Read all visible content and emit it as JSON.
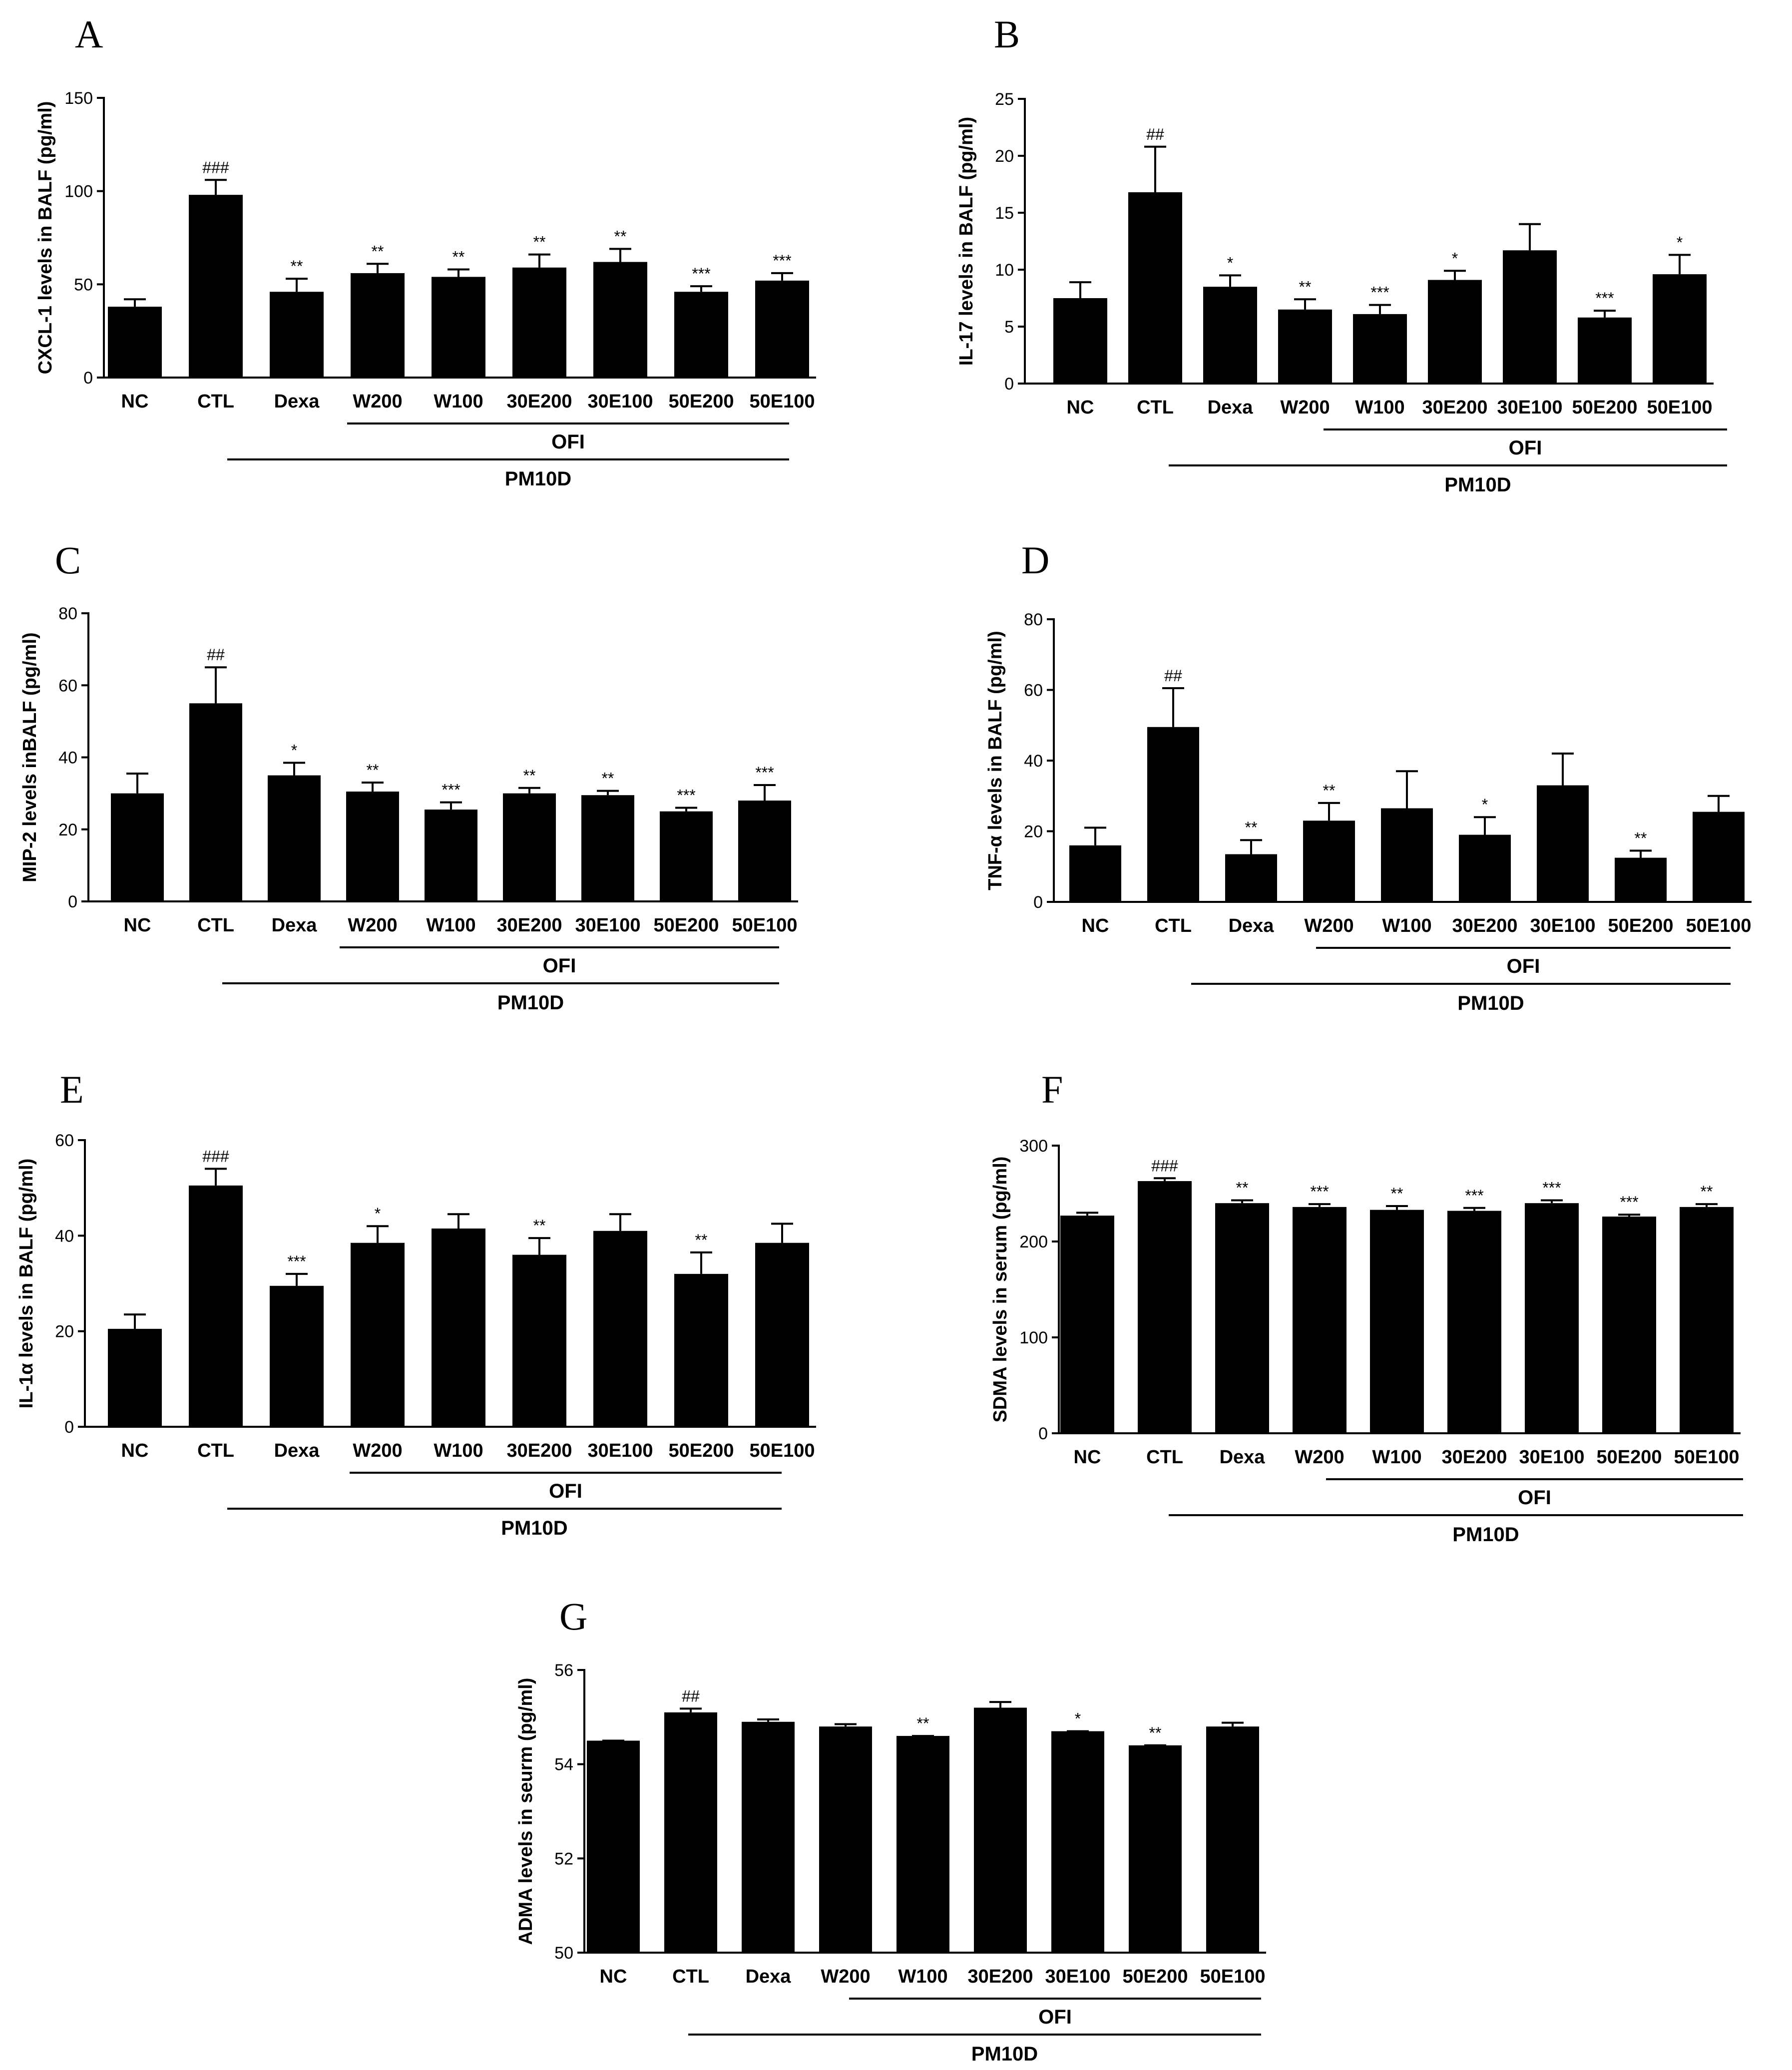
{
  "chart_data": [
    {
      "panel": "A",
      "type": "bar",
      "ylabel": "CXCL-1 levels in BALF (pg/ml)",
      "categories": [
        "NC",
        "CTL",
        "Dexa",
        "W200",
        "W100",
        "30E200",
        "30E100",
        "50E200",
        "50E100"
      ],
      "values": [
        38,
        98,
        46,
        56,
        54,
        59,
        62,
        46,
        52
      ],
      "errors": [
        4,
        8,
        7,
        5,
        4,
        7,
        7,
        3,
        4
      ],
      "significance": [
        "",
        "###",
        "**",
        "**",
        "**",
        "**",
        "**",
        "***",
        "***"
      ],
      "ylim": [
        0,
        150
      ],
      "yticks": [
        0,
        50,
        100,
        150
      ],
      "group_labels": {
        "ofi": "OFI",
        "pm10d": "PM10D"
      }
    },
    {
      "panel": "B",
      "type": "bar",
      "ylabel": "IL-17 levels in BALF (pg/ml)",
      "categories": [
        "NC",
        "CTL",
        "Dexa",
        "W200",
        "W100",
        "30E200",
        "30E100",
        "50E200",
        "50E100"
      ],
      "values": [
        7.5,
        16.8,
        8.5,
        6.5,
        6.1,
        9.1,
        11.7,
        5.8,
        9.6
      ],
      "errors": [
        1.4,
        4.0,
        1.0,
        0.9,
        0.8,
        0.8,
        2.3,
        0.6,
        1.7
      ],
      "significance": [
        "",
        "##",
        "*",
        "**",
        "***",
        "*",
        "",
        "***",
        "*"
      ],
      "ylim": [
        0,
        25
      ],
      "yticks": [
        0,
        5,
        10,
        15,
        20,
        25
      ],
      "group_labels": {
        "ofi": "OFI",
        "pm10d": "PM10D"
      }
    },
    {
      "panel": "C",
      "type": "bar",
      "ylabel": "MIP-2 levels inBALF (pg/ml)",
      "categories": [
        "NC",
        "CTL",
        "Dexa",
        "W200",
        "W100",
        "30E200",
        "30E100",
        "50E200",
        "50E100"
      ],
      "values": [
        30,
        55,
        35,
        30.5,
        25.5,
        30,
        29.5,
        25,
        28
      ],
      "errors": [
        5.5,
        10,
        3.5,
        2.5,
        2,
        1.5,
        1.2,
        1,
        4.3
      ],
      "significance": [
        "",
        "##",
        "*",
        "**",
        "***",
        "**",
        "**",
        "***",
        "***"
      ],
      "ylim": [
        0,
        80
      ],
      "yticks": [
        0,
        20,
        40,
        60,
        80
      ],
      "group_labels": {
        "ofi": "OFI",
        "pm10d": "PM10D"
      }
    },
    {
      "panel": "D",
      "type": "bar",
      "ylabel": "TNF-α levels in BALF (pg/ml)",
      "categories": [
        "NC",
        "CTL",
        "Dexa",
        "W200",
        "W100",
        "30E200",
        "30E100",
        "50E200",
        "50E100"
      ],
      "values": [
        16,
        49.5,
        13.5,
        23,
        26.5,
        19,
        33,
        12.5,
        25.5
      ],
      "errors": [
        5,
        11,
        4,
        5,
        10.5,
        5,
        9,
        2,
        4.5
      ],
      "significance": [
        "",
        "##",
        "**",
        "**",
        "",
        "*",
        "",
        "**",
        ""
      ],
      "ylim": [
        0,
        80
      ],
      "yticks": [
        0,
        20,
        40,
        60,
        80
      ],
      "group_labels": {
        "ofi": "OFI",
        "pm10d": "PM10D"
      }
    },
    {
      "panel": "E",
      "type": "bar",
      "ylabel": "IL-1α levels in BALF (pg/ml)",
      "categories": [
        "NC",
        "CTL",
        "Dexa",
        "W200",
        "W100",
        "30E200",
        "30E100",
        "50E200",
        "50E100"
      ],
      "values": [
        20.5,
        50.5,
        29.5,
        38.5,
        41.5,
        36,
        41,
        32,
        38.5
      ],
      "errors": [
        3,
        3.5,
        2.5,
        3.5,
        3,
        3.5,
        3.5,
        4.5,
        4
      ],
      "significance": [
        "",
        "###",
        "***",
        "*",
        "",
        "**",
        "",
        "**",
        ""
      ],
      "ylim": [
        0,
        60
      ],
      "yticks": [
        0,
        20,
        40,
        60
      ],
      "group_labels": {
        "ofi": "OFI",
        "pm10d": "PM10D"
      }
    },
    {
      "panel": "F",
      "type": "bar",
      "ylabel": "SDMA levels in serum (pg/ml)",
      "categories": [
        "NC",
        "CTL",
        "Dexa",
        "W200",
        "W100",
        "30E200",
        "30E100",
        "50E200",
        "50E100"
      ],
      "values": [
        227,
        263,
        240,
        236,
        233,
        232,
        240,
        226,
        236
      ],
      "errors": [
        3,
        3,
        3,
        3,
        4,
        3,
        3,
        2,
        3
      ],
      "significance": [
        "",
        "###",
        "**",
        "***",
        "**",
        "***",
        "***",
        "***",
        "**"
      ],
      "ylim": [
        0,
        300
      ],
      "yticks": [
        0,
        100,
        200,
        300
      ],
      "group_labels": {
        "ofi": "OFI",
        "pm10d": "PM10D"
      }
    },
    {
      "panel": "G",
      "type": "bar",
      "ylabel": "ADMA levels in seurm (pg/ml)",
      "categories": [
        "NC",
        "CTL",
        "Dexa",
        "W200",
        "W100",
        "30E200",
        "30E100",
        "50E200",
        "50E100"
      ],
      "values": [
        54.5,
        55.1,
        54.9,
        54.8,
        54.6,
        55.2,
        54.7,
        54.4,
        54.8
      ],
      "errors": [
        0,
        0.08,
        0.05,
        0.05,
        0,
        0.12,
        0,
        0,
        0.08
      ],
      "significance": [
        "",
        "##",
        "",
        "",
        "**",
        "",
        "*",
        "**",
        ""
      ],
      "ylim": [
        50,
        56
      ],
      "yticks": [
        50,
        52,
        54,
        56
      ],
      "group_labels": {
        "ofi": "OFI",
        "pm10d": "PM10D"
      }
    }
  ]
}
